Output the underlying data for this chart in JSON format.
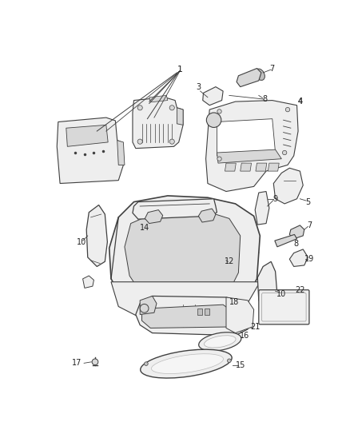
{
  "background_color": "#ffffff",
  "line_color": "#404040",
  "text_color": "#222222",
  "fig_width": 4.38,
  "fig_height": 5.33,
  "dpi": 100,
  "fill_light": "#eeeeee",
  "fill_mid": "#d8d8d8",
  "fill_dark": "#c0c0c0"
}
